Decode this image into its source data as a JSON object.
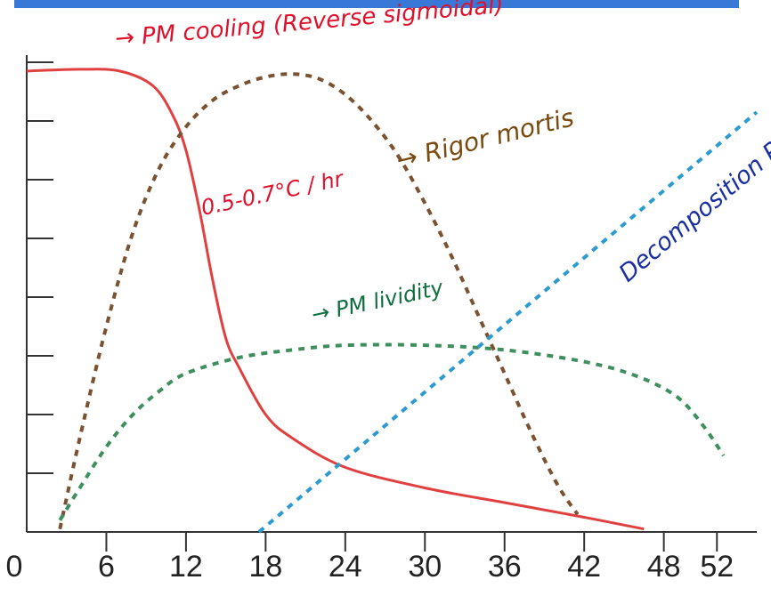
{
  "chart_data": {
    "type": "line",
    "title": "",
    "xlabel": "",
    "ylabel": "",
    "x_ticks": [
      0,
      6,
      12,
      18,
      24,
      30,
      36,
      42,
      48,
      52
    ],
    "xlim": [
      0,
      55
    ],
    "ylim": [
      0,
      8
    ],
    "grid": false,
    "colors": {
      "cooling": "#e04040",
      "rigor": "#7a5232",
      "lividity": "#3e8e5e",
      "decomposition": "#2e9bd0",
      "annotation_red": "#e0102a",
      "annotation_brown": "#7a4a10",
      "annotation_green": "#0e6e3e",
      "annotation_blue": "#1a2fa0",
      "header_bar": "#3a78d8"
    },
    "series": [
      {
        "key": "cooling",
        "style": "solid",
        "points": [
          [
            0,
            7.85
          ],
          [
            4,
            7.88
          ],
          [
            7,
            7.85
          ],
          [
            9.5,
            7.6
          ],
          [
            11,
            7.1
          ],
          [
            12,
            6.5
          ],
          [
            13,
            5.5
          ],
          [
            14,
            4.3
          ],
          [
            15,
            3.3
          ],
          [
            16,
            2.8
          ],
          [
            18,
            2.0
          ],
          [
            20,
            1.6
          ],
          [
            24,
            1.1
          ],
          [
            30,
            0.75
          ],
          [
            36,
            0.5
          ],
          [
            42,
            0.25
          ],
          [
            46.5,
            0.05
          ]
        ]
      },
      {
        "key": "rigor",
        "style": "dashed",
        "points": [
          [
            2.5,
            0.05
          ],
          [
            4,
            1.6
          ],
          [
            6,
            3.5
          ],
          [
            8,
            5.1
          ],
          [
            10,
            6.2
          ],
          [
            12,
            6.9
          ],
          [
            14,
            7.35
          ],
          [
            16,
            7.6
          ],
          [
            18,
            7.75
          ],
          [
            20,
            7.8
          ],
          [
            22,
            7.72
          ],
          [
            24,
            7.45
          ],
          [
            26,
            7.0
          ],
          [
            28,
            6.4
          ],
          [
            30,
            5.6
          ],
          [
            32,
            4.7
          ],
          [
            34,
            3.7
          ],
          [
            36,
            2.7
          ],
          [
            38,
            1.7
          ],
          [
            40,
            0.8
          ],
          [
            41.5,
            0.3
          ]
        ]
      },
      {
        "key": "lividity",
        "style": "dashed",
        "points": [
          [
            2.5,
            0.2
          ],
          [
            4,
            0.75
          ],
          [
            6,
            1.45
          ],
          [
            8,
            2.0
          ],
          [
            10,
            2.4
          ],
          [
            12,
            2.7
          ],
          [
            16,
            2.97
          ],
          [
            20,
            3.1
          ],
          [
            24,
            3.18
          ],
          [
            30,
            3.18
          ],
          [
            36,
            3.1
          ],
          [
            42,
            2.9
          ],
          [
            46,
            2.65
          ],
          [
            49,
            2.3
          ],
          [
            51,
            1.8
          ],
          [
            52.5,
            1.3
          ]
        ]
      },
      {
        "key": "decomposition",
        "style": "dashed",
        "points": [
          [
            17.5,
            0.0
          ],
          [
            55,
            7.15
          ]
        ]
      }
    ],
    "annotations": [
      {
        "key": "cooling",
        "text": "→ PM cooling (Reverse sigmoidal)"
      },
      {
        "key": "rate",
        "text": "0.5-0.7°C / hr"
      },
      {
        "key": "rigor",
        "text": "→ Rigor mortis"
      },
      {
        "key": "lividity",
        "text": "→ PM lividity"
      },
      {
        "key": "decomposition",
        "text": "Decomposition Putrefaction"
      }
    ]
  }
}
